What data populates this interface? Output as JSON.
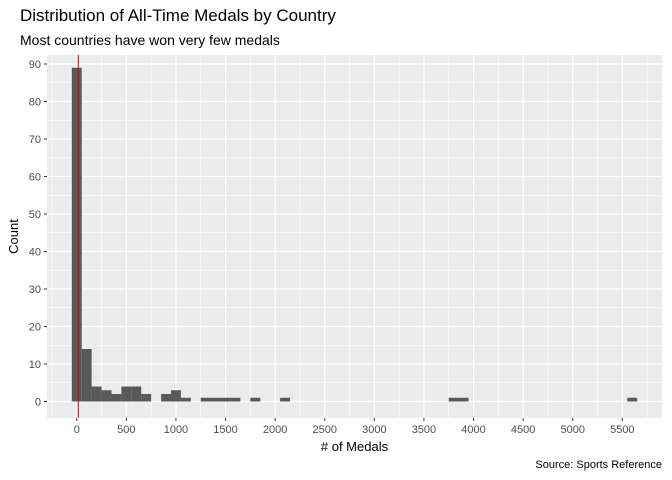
{
  "chart_data": {
    "type": "bar",
    "title": "Distribution of All-Time Medals by Country",
    "subtitle": "Most countries have won very few medals",
    "caption": "Source: Sports Reference",
    "xlabel": "# of Medals",
    "ylabel": "Count",
    "xlim": [
      -300,
      5900
    ],
    "ylim": [
      -4.4,
      92.4
    ],
    "x_ticks": [
      0,
      500,
      1000,
      1500,
      2000,
      2500,
      3000,
      3500,
      4000,
      4500,
      5000,
      5500
    ],
    "x_tick_labels": [
      "0",
      "500",
      "1000",
      "1500",
      "2000",
      "2500",
      "3000",
      "3500",
      "4000",
      "4500",
      "5000",
      "5500"
    ],
    "y_ticks": [
      0,
      10,
      20,
      30,
      40,
      50,
      60,
      70,
      80,
      90
    ],
    "y_tick_labels": [
      "0",
      "10",
      "20",
      "30",
      "40",
      "50",
      "60",
      "70",
      "80",
      "90"
    ],
    "bin_width": 100,
    "bins": [
      {
        "start": -50,
        "end": 50,
        "count": 89
      },
      {
        "start": 50,
        "end": 150,
        "count": 14
      },
      {
        "start": 150,
        "end": 250,
        "count": 4
      },
      {
        "start": 250,
        "end": 350,
        "count": 3
      },
      {
        "start": 350,
        "end": 450,
        "count": 2
      },
      {
        "start": 450,
        "end": 550,
        "count": 4
      },
      {
        "start": 550,
        "end": 650,
        "count": 4
      },
      {
        "start": 650,
        "end": 750,
        "count": 2
      },
      {
        "start": 850,
        "end": 950,
        "count": 2
      },
      {
        "start": 950,
        "end": 1050,
        "count": 3
      },
      {
        "start": 1050,
        "end": 1150,
        "count": 1
      },
      {
        "start": 1250,
        "end": 1350,
        "count": 1
      },
      {
        "start": 1350,
        "end": 1450,
        "count": 1
      },
      {
        "start": 1450,
        "end": 1550,
        "count": 1
      },
      {
        "start": 1550,
        "end": 1650,
        "count": 1
      },
      {
        "start": 1750,
        "end": 1850,
        "count": 1
      },
      {
        "start": 2050,
        "end": 2150,
        "count": 1
      },
      {
        "start": 3750,
        "end": 3850,
        "count": 1
      },
      {
        "start": 3850,
        "end": 3950,
        "count": 1
      },
      {
        "start": 5550,
        "end": 5650,
        "count": 1
      }
    ],
    "vline": {
      "x": 15,
      "color": "#cc0000"
    },
    "bar_color": "#595959",
    "panel_background": "#ebebeb",
    "grid": true,
    "grid_color": "#ffffff"
  }
}
